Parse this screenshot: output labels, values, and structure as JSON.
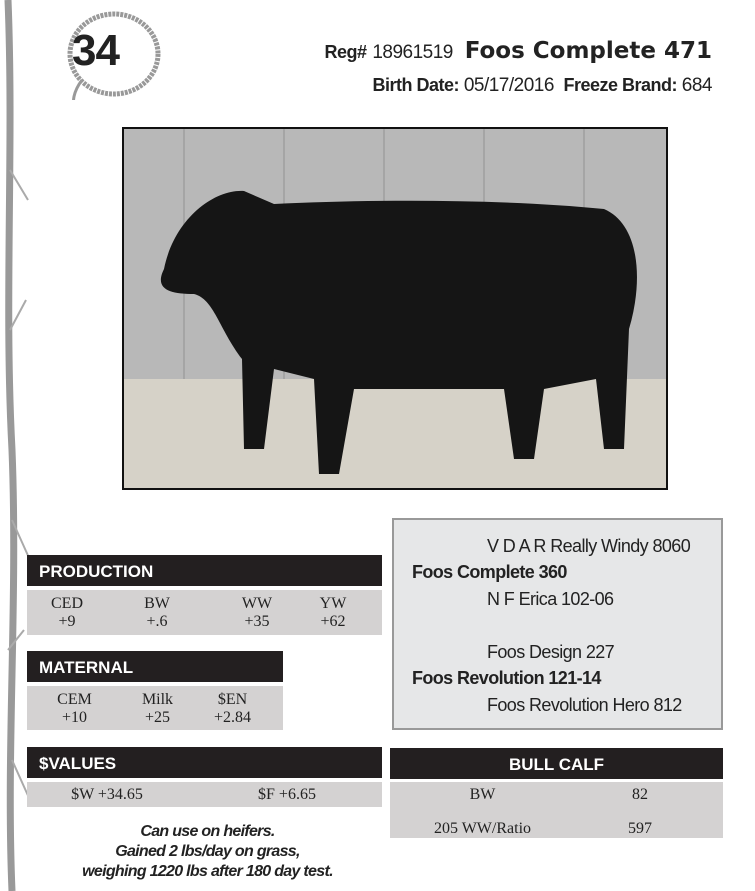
{
  "lot": {
    "number": "34"
  },
  "header": {
    "reg_label": "Reg#",
    "reg_number": "18961519",
    "name": "Foos Complete 471",
    "birth_label": "Birth Date:",
    "birth_date": "05/17/2016",
    "brand_label": "Freeze Brand:",
    "brand": "684"
  },
  "pedigree": {
    "sire_sire": "V D A R Really Windy 8060",
    "sire": "Foos Complete 360",
    "sire_dam": "N F Erica 102-06",
    "dam_sire": "Foos Design 227",
    "dam": "Foos Revolution 121-14",
    "dam_dam": "Foos Revolution Hero 812"
  },
  "production": {
    "title": "PRODUCTION",
    "items": [
      {
        "label": "CED",
        "value": "+9"
      },
      {
        "label": "BW",
        "value": "+.6"
      },
      {
        "label": "WW",
        "value": "+35"
      },
      {
        "label": "YW",
        "value": "+62"
      }
    ]
  },
  "maternal": {
    "title": "MATERNAL",
    "items": [
      {
        "label": "CEM",
        "value": "+10"
      },
      {
        "label": "Milk",
        "value": "+25"
      },
      {
        "label": "$EN",
        "value": "+2.84"
      }
    ]
  },
  "values": {
    "title": "$VALUES",
    "items": [
      "$W +34.65",
      "$F +6.65"
    ]
  },
  "bull_calf": {
    "title": "BULL CALF",
    "rows": [
      {
        "label": "BW",
        "value": "82"
      },
      {
        "label": "205 WW/Ratio",
        "value": "597"
      }
    ]
  },
  "notes": [
    "Can use on heifers.",
    "Gained 2 lbs/day on grass,",
    "weighing 1220 lbs after 180 day test."
  ],
  "colors": {
    "header_bg": "#231f20",
    "row_bg": "#d4d2d2",
    "pedigree_bg": "#e6e7e8"
  }
}
